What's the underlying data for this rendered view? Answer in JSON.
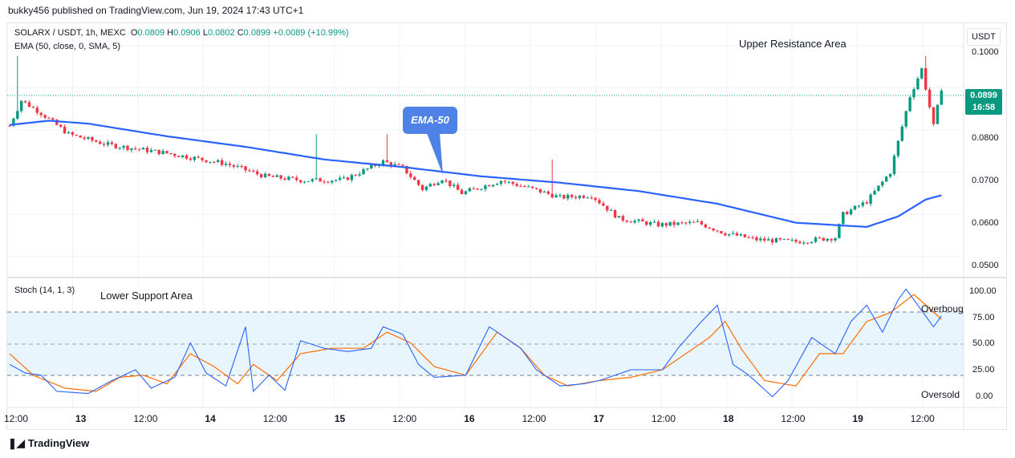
{
  "header": {
    "published": "bukky456 published on TradingView.com, Jun 19, 2024 17:43 UTC+1"
  },
  "legend": {
    "symbol": "SOLARX / USDT, 1h, MEXC",
    "open_label": "O",
    "open": "0.0809",
    "high_label": "H",
    "high": "0.0906",
    "low_label": "L",
    "low": "0.0802",
    "close_label": "C",
    "close": "0.0899",
    "change": "+0.0089 (+10.99%)",
    "indicator": "EMA (50, close, 0, SMA, 5)",
    "stoch": "Stoch (14, 1, 3)"
  },
  "annotations": {
    "upper": "Upper Resistance Area",
    "lower": "Lower Support Area",
    "ema_callout": "EMA-50",
    "overbought": "Overbought",
    "oversold": "Oversold"
  },
  "price_scale": {
    "currency": "USDT",
    "ticks": [
      "0.1000",
      "0.0900",
      "0.0800",
      "0.0700",
      "0.0600",
      "0.0500"
    ],
    "last_price": "0.0899",
    "countdown": "16:58"
  },
  "stoch_scale": {
    "ticks": [
      "100.00",
      "75.00",
      "50.00",
      "25.00",
      "0.00"
    ]
  },
  "time_axis": {
    "labels": [
      "12:00",
      "13",
      "12:00",
      "14",
      "12:00",
      "15",
      "12:00",
      "16",
      "12:00",
      "17",
      "12:00",
      "18",
      "12:00",
      "19",
      "12:00"
    ]
  },
  "footer": {
    "brand": "TradingView"
  },
  "colors": {
    "up": "#089981",
    "down": "#f23645",
    "ema": "#2962ff",
    "stoch_k": "#2962ff",
    "stoch_d": "#ff6d00",
    "band": "#e3f2fd"
  },
  "chart_data": {
    "type": "candlestick",
    "title": "SOLARX / USDT, 1h, MEXC",
    "price_ylim": [
      0.045,
      0.1055
    ],
    "stoch_ylim": [
      -10,
      110
    ],
    "x_labels": [
      "12:00",
      "13",
      "12:00",
      "14",
      "12:00",
      "15",
      "12:00",
      "16",
      "12:00",
      "17",
      "12:00",
      "18",
      "12:00",
      "19",
      "12:00"
    ],
    "price_anchors": [
      [
        0,
        0.081
      ],
      [
        3,
        0.087
      ],
      [
        8,
        0.084
      ],
      [
        15,
        0.079
      ],
      [
        25,
        0.0765
      ],
      [
        40,
        0.0745
      ],
      [
        55,
        0.072
      ],
      [
        65,
        0.069
      ],
      [
        75,
        0.068
      ],
      [
        85,
        0.0682
      ],
      [
        95,
        0.0725
      ],
      [
        100,
        0.071
      ],
      [
        105,
        0.066
      ],
      [
        110,
        0.0685
      ],
      [
        115,
        0.065
      ],
      [
        125,
        0.068
      ],
      [
        133,
        0.066
      ],
      [
        140,
        0.064
      ],
      [
        148,
        0.0645
      ],
      [
        155,
        0.059
      ],
      [
        165,
        0.0575
      ],
      [
        175,
        0.058
      ],
      [
        182,
        0.0555
      ],
      [
        190,
        0.054
      ],
      [
        200,
        0.0535
      ],
      [
        210,
        0.0545
      ],
      [
        212,
        0.06
      ],
      [
        218,
        0.063
      ],
      [
        224,
        0.07
      ],
      [
        229,
        0.088
      ],
      [
        232,
        0.0945
      ],
      [
        235,
        0.0809
      ],
      [
        237,
        0.0899
      ]
    ],
    "wick_spikes": [
      {
        "index": 2,
        "high": 0.0975
      },
      {
        "index": 78,
        "high": 0.079
      },
      {
        "index": 96,
        "high": 0.079
      },
      {
        "index": 138,
        "high": 0.073
      },
      {
        "index": 233,
        "high": 0.0975
      }
    ],
    "ema50": [
      [
        0,
        0.0812
      ],
      [
        10,
        0.0822
      ],
      [
        20,
        0.0815
      ],
      [
        40,
        0.0785
      ],
      [
        60,
        0.076
      ],
      [
        80,
        0.073
      ],
      [
        100,
        0.0712
      ],
      [
        120,
        0.069
      ],
      [
        140,
        0.0675
      ],
      [
        160,
        0.0655
      ],
      [
        180,
        0.0625
      ],
      [
        200,
        0.058
      ],
      [
        218,
        0.057
      ],
      [
        226,
        0.0595
      ],
      [
        233,
        0.0635
      ],
      [
        237,
        0.0645
      ]
    ],
    "stoch_k_anchors": [
      [
        0,
        30
      ],
      [
        4,
        22
      ],
      [
        8,
        20
      ],
      [
        12,
        5
      ],
      [
        20,
        3
      ],
      [
        26,
        15
      ],
      [
        32,
        25
      ],
      [
        36,
        8
      ],
      [
        42,
        18
      ],
      [
        46,
        50
      ],
      [
        50,
        22
      ],
      [
        55,
        10
      ],
      [
        60,
        65
      ],
      [
        62,
        5
      ],
      [
        66,
        20
      ],
      [
        70,
        6
      ],
      [
        74,
        52
      ],
      [
        80,
        45
      ],
      [
        86,
        42
      ],
      [
        92,
        45
      ],
      [
        95,
        65
      ],
      [
        100,
        58
      ],
      [
        104,
        30
      ],
      [
        108,
        18
      ],
      [
        116,
        20
      ],
      [
        122,
        65
      ],
      [
        126,
        55
      ],
      [
        130,
        45
      ],
      [
        134,
        25
      ],
      [
        140,
        10
      ],
      [
        146,
        12
      ],
      [
        150,
        15
      ],
      [
        158,
        25
      ],
      [
        166,
        25
      ],
      [
        170,
        45
      ],
      [
        176,
        70
      ],
      [
        180,
        85
      ],
      [
        184,
        30
      ],
      [
        188,
        20
      ],
      [
        194,
        0
      ],
      [
        198,
        15
      ],
      [
        204,
        55
      ],
      [
        210,
        40
      ],
      [
        214,
        70
      ],
      [
        218,
        85
      ],
      [
        222,
        60
      ],
      [
        226,
        90
      ],
      [
        228,
        100
      ],
      [
        232,
        80
      ],
      [
        235,
        65
      ],
      [
        237,
        75
      ]
    ],
    "stoch_d_anchors": [
      [
        0,
        40
      ],
      [
        6,
        20
      ],
      [
        14,
        8
      ],
      [
        22,
        5
      ],
      [
        28,
        18
      ],
      [
        34,
        20
      ],
      [
        40,
        12
      ],
      [
        46,
        40
      ],
      [
        52,
        28
      ],
      [
        58,
        12
      ],
      [
        62,
        30
      ],
      [
        68,
        15
      ],
      [
        74,
        40
      ],
      [
        82,
        45
      ],
      [
        90,
        45
      ],
      [
        96,
        60
      ],
      [
        102,
        50
      ],
      [
        108,
        28
      ],
      [
        116,
        20
      ],
      [
        124,
        60
      ],
      [
        130,
        45
      ],
      [
        136,
        20
      ],
      [
        142,
        10
      ],
      [
        150,
        15
      ],
      [
        158,
        18
      ],
      [
        166,
        25
      ],
      [
        172,
        40
      ],
      [
        178,
        55
      ],
      [
        182,
        70
      ],
      [
        186,
        45
      ],
      [
        192,
        15
      ],
      [
        200,
        10
      ],
      [
        206,
        40
      ],
      [
        212,
        40
      ],
      [
        218,
        70
      ],
      [
        224,
        78
      ],
      [
        230,
        95
      ],
      [
        234,
        82
      ],
      [
        237,
        72
      ]
    ]
  }
}
